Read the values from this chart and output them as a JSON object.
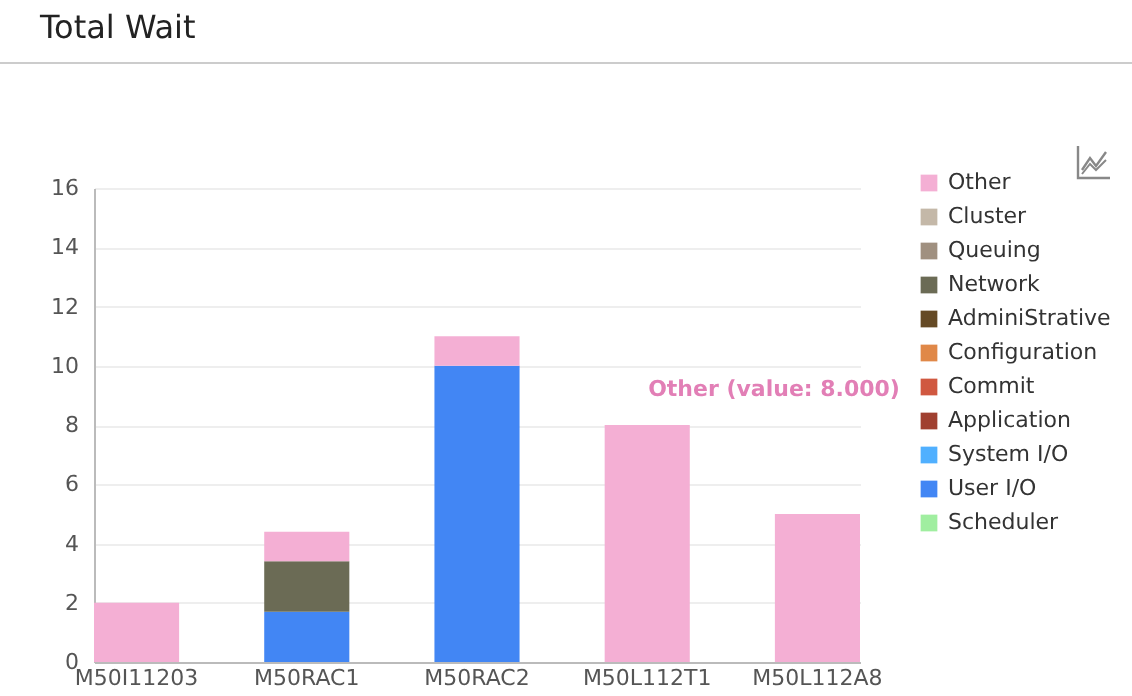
{
  "chart_data": {
    "type": "bar",
    "title": "Total Wait",
    "stacked": true,
    "categories": [
      "M50I11203",
      "M50RAC1",
      "M50RAC2",
      "M50L112T1",
      "M50L112A8"
    ],
    "series": [
      {
        "name": "Scheduler",
        "color": "#a0eea0",
        "values": [
          0,
          0,
          0,
          0,
          0
        ]
      },
      {
        "name": "User I/O",
        "color": "#4286f4",
        "values": [
          0,
          1.7,
          10,
          0,
          0
        ]
      },
      {
        "name": "System I/O",
        "color": "#50b0ff",
        "values": [
          0,
          0,
          0,
          0,
          0
        ]
      },
      {
        "name": "Application",
        "color": "#a04030",
        "values": [
          0,
          0,
          0,
          0,
          0
        ]
      },
      {
        "name": "Commit",
        "color": "#d05840",
        "values": [
          0,
          0,
          0,
          0,
          0
        ]
      },
      {
        "name": "Configuration",
        "color": "#e08848",
        "values": [
          0,
          0,
          0,
          0,
          0
        ]
      },
      {
        "name": "AdminiStrative",
        "color": "#654a25",
        "values": [
          0,
          0,
          0,
          0,
          0
        ]
      },
      {
        "name": "Network",
        "color": "#6b6b55",
        "values": [
          0,
          1.7,
          0,
          0,
          0
        ]
      },
      {
        "name": "Queuing",
        "color": "#a09080",
        "values": [
          0,
          0,
          0,
          0,
          0
        ]
      },
      {
        "name": "Cluster",
        "color": "#c4b8a8",
        "values": [
          0,
          0,
          0,
          0,
          0
        ]
      },
      {
        "name": "Other",
        "color": "#f4afd4",
        "values": [
          2,
          1.0,
          1,
          8,
          5
        ]
      }
    ],
    "ylim": [
      0,
      16
    ],
    "yticks": [
      0,
      2,
      4,
      6,
      8,
      10,
      12,
      14,
      16
    ],
    "grid": "y",
    "legend": "right",
    "annotations": [
      "Other (value: 8.000)"
    ]
  }
}
